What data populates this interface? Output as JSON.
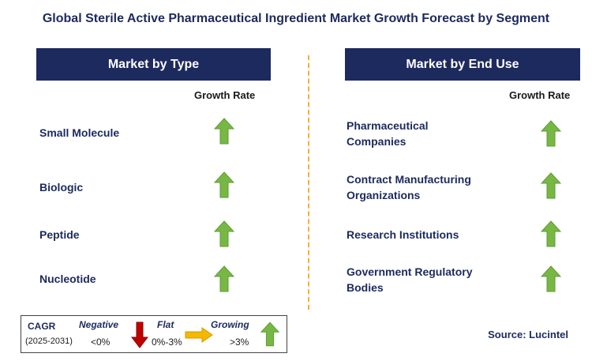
{
  "title": "Global Sterile Active Pharmaceutical Ingredient Market Growth Forecast by Segment",
  "colors": {
    "navy": "#1c2a5e",
    "green": "#77b844",
    "red": "#c00000",
    "yellow": "#f5b800",
    "divider": "#f2b233"
  },
  "left_panel": {
    "heading": "Market by Type",
    "growth_header": "Growth Rate",
    "items": [
      {
        "label": "Small Molecule",
        "trend": "growing"
      },
      {
        "label": "Biologic",
        "trend": "growing"
      },
      {
        "label": "Peptide",
        "trend": "growing"
      },
      {
        "label": "Nucleotide",
        "trend": "growing"
      }
    ]
  },
  "right_panel": {
    "heading": "Market by End Use",
    "growth_header": "Growth Rate",
    "items": [
      {
        "label_line1": "Pharmaceutical",
        "label_line2": "Companies",
        "trend": "growing"
      },
      {
        "label_line1": "Contract Manufacturing",
        "label_line2": "Organizations",
        "trend": "growing"
      },
      {
        "label_line1": "Research Institutions",
        "label_line2": "",
        "trend": "growing"
      },
      {
        "label_line1": "Government Regulatory",
        "label_line2": "Bodies",
        "trend": "growing"
      }
    ]
  },
  "legend": {
    "cagr_label": "CAGR",
    "period": "(2025-2031)",
    "negative_label": "Negative",
    "negative_range": "<0%",
    "flat_label": "Flat",
    "flat_range": "0%-3%",
    "growing_label": "Growing",
    "growing_range": ">3%"
  },
  "source": "Source: Lucintel"
}
